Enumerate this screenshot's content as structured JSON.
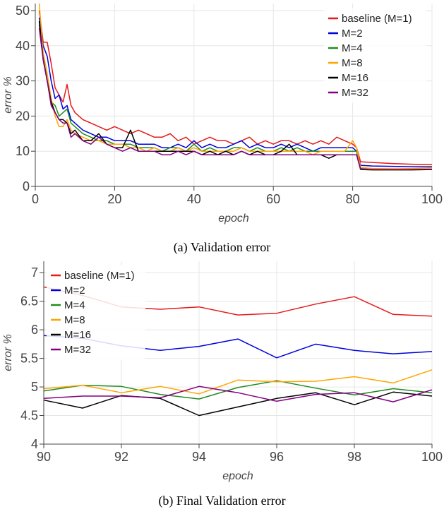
{
  "chart_data": [
    {
      "type": "line",
      "caption": "(a) Validation error",
      "xlabel": "epoch",
      "ylabel": "error %",
      "xlim": [
        0,
        100
      ],
      "ylim": [
        0,
        52
      ],
      "xticks": [
        0,
        20,
        40,
        60,
        80,
        100
      ],
      "yticks": [
        0,
        10,
        20,
        30,
        40,
        50
      ],
      "grid": true,
      "legend": "top-right",
      "series": [
        {
          "name": "baseline (M=1)",
          "color": "#e41a1c",
          "x": [
            1,
            2,
            3,
            4,
            5,
            6,
            7,
            8,
            9,
            10,
            12,
            14,
            16,
            18,
            20,
            22,
            24,
            26,
            28,
            30,
            32,
            34,
            36,
            38,
            40,
            42,
            44,
            46,
            48,
            50,
            52,
            54,
            56,
            58,
            60,
            62,
            64,
            66,
            68,
            70,
            72,
            74,
            76,
            78,
            80,
            81,
            82,
            85,
            90,
            95,
            100
          ],
          "y": [
            50,
            41,
            41,
            35,
            28,
            26,
            24,
            29,
            23,
            21,
            19,
            18,
            17,
            16,
            17,
            16,
            15,
            16,
            15,
            14,
            14,
            15,
            13,
            14,
            12,
            13,
            14,
            13,
            13,
            12,
            13,
            14,
            12,
            13,
            12,
            13,
            13,
            12,
            13,
            12,
            13,
            12,
            14,
            13,
            12,
            11,
            7,
            6.8,
            6.5,
            6.3,
            6.2
          ]
        },
        {
          "name": "M=2",
          "color": "#0000dd",
          "x": [
            1,
            2,
            3,
            4,
            5,
            6,
            7,
            8,
            9,
            10,
            12,
            14,
            16,
            18,
            20,
            22,
            24,
            26,
            28,
            30,
            32,
            34,
            36,
            38,
            40,
            42,
            44,
            46,
            48,
            50,
            52,
            54,
            56,
            58,
            60,
            62,
            64,
            66,
            68,
            70,
            72,
            74,
            76,
            78,
            80,
            81,
            82,
            85,
            90,
            95,
            100
          ],
          "y": [
            48,
            40,
            37,
            30,
            25,
            26,
            22,
            23,
            19,
            18,
            16,
            15,
            14,
            14,
            13,
            13,
            13,
            12,
            12,
            12,
            11,
            11,
            12,
            11,
            13,
            11,
            12,
            11,
            11,
            12,
            13,
            11,
            12,
            11,
            11,
            12,
            11,
            12,
            11,
            10,
            11,
            11,
            11,
            11,
            11,
            10,
            6,
            5.8,
            5.7,
            5.6,
            5.6
          ]
        },
        {
          "name": "M=4",
          "color": "#228b22",
          "x": [
            1,
            2,
            3,
            4,
            5,
            6,
            7,
            8,
            9,
            10,
            12,
            14,
            16,
            18,
            20,
            22,
            24,
            26,
            28,
            30,
            32,
            34,
            36,
            38,
            40,
            42,
            44,
            46,
            48,
            50,
            52,
            54,
            56,
            58,
            60,
            62,
            64,
            66,
            68,
            70,
            72,
            74,
            76,
            78,
            80,
            81,
            82,
            85,
            90,
            95,
            100
          ],
          "y": [
            46,
            37,
            30,
            24,
            23,
            20,
            21,
            22,
            18,
            17,
            15,
            14,
            13,
            13,
            12,
            12,
            12,
            11,
            11,
            11,
            10,
            11,
            11,
            10,
            12,
            10,
            11,
            10,
            10,
            11,
            11,
            10,
            11,
            10,
            10,
            11,
            10,
            11,
            10,
            10,
            10,
            10,
            10,
            10,
            10,
            10,
            5.2,
            5.0,
            5.0,
            4.9,
            4.9
          ]
        },
        {
          "name": "M=8",
          "color": "#ffa500",
          "x": [
            1,
            2,
            3,
            4,
            5,
            6,
            7,
            8,
            9,
            10,
            12,
            14,
            16,
            18,
            20,
            22,
            24,
            26,
            28,
            30,
            32,
            34,
            36,
            38,
            40,
            42,
            44,
            46,
            48,
            50,
            52,
            54,
            56,
            58,
            60,
            62,
            64,
            66,
            68,
            70,
            72,
            74,
            76,
            78,
            80,
            81,
            82,
            85,
            90,
            95,
            100
          ],
          "y": [
            52,
            38,
            32,
            25,
            20,
            17,
            17,
            19,
            16,
            15,
            14,
            13,
            13,
            12,
            12,
            12,
            11,
            11,
            10,
            11,
            10,
            10,
            11,
            10,
            11,
            10,
            10,
            10,
            10,
            10,
            11,
            10,
            10,
            10,
            10,
            10,
            10,
            10,
            10,
            9,
            10,
            10,
            10,
            10,
            13,
            11,
            5.4,
            5.1,
            5.0,
            5.1,
            5.3
          ]
        },
        {
          "name": "M=16",
          "color": "#000000",
          "x": [
            1,
            2,
            3,
            4,
            5,
            6,
            7,
            8,
            9,
            10,
            12,
            14,
            16,
            18,
            20,
            22,
            24,
            26,
            28,
            30,
            32,
            34,
            36,
            38,
            40,
            42,
            44,
            46,
            48,
            50,
            52,
            54,
            56,
            58,
            60,
            62,
            64,
            66,
            68,
            70,
            72,
            74,
            76,
            78,
            80,
            81,
            82,
            85,
            90,
            95,
            100
          ],
          "y": [
            47,
            36,
            30,
            24,
            21,
            19,
            19,
            18,
            15,
            16,
            13,
            13,
            15,
            12,
            11,
            11,
            16,
            10,
            10,
            10,
            10,
            10,
            10,
            10,
            10,
            9,
            10,
            9,
            10,
            9,
            10,
            9,
            10,
            9,
            9,
            10,
            12,
            9,
            9,
            9,
            9,
            8,
            9,
            9,
            9,
            9,
            4.8,
            4.7,
            4.7,
            4.7,
            4.8
          ]
        },
        {
          "name": "M=32",
          "color": "#800080",
          "x": [
            1,
            2,
            3,
            4,
            5,
            6,
            7,
            8,
            9,
            10,
            12,
            14,
            16,
            18,
            20,
            22,
            24,
            26,
            28,
            30,
            32,
            34,
            36,
            38,
            40,
            42,
            44,
            46,
            48,
            50,
            52,
            54,
            56,
            58,
            60,
            62,
            64,
            66,
            68,
            70,
            72,
            74,
            76,
            78,
            80,
            81,
            82,
            85,
            90,
            95,
            100
          ],
          "y": [
            45,
            36,
            30,
            23,
            21,
            19,
            18,
            18,
            14,
            15,
            13,
            12,
            14,
            12,
            11,
            10,
            11,
            10,
            10,
            10,
            9,
            9,
            10,
            9,
            10,
            9,
            9,
            9,
            9,
            9,
            10,
            9,
            9,
            9,
            9,
            9,
            9,
            9,
            9,
            9,
            9,
            9,
            9,
            9,
            9,
            9,
            4.9,
            4.8,
            4.8,
            4.8,
            4.9
          ]
        }
      ]
    },
    {
      "type": "line",
      "caption": "(b) Final Validation error",
      "xlabel": "epoch",
      "ylabel": "error %",
      "xlim": [
        90,
        100
      ],
      "ylim": [
        4,
        7.2
      ],
      "xticks": [
        90,
        92,
        94,
        96,
        98,
        100
      ],
      "yticks": [
        4,
        4.5,
        5,
        5.5,
        6,
        6.5,
        7
      ],
      "yticklabels": [
        "4",
        "4.5",
        "5",
        "5.5",
        "6",
        "6.5",
        "7"
      ],
      "grid": true,
      "legend": "top-left",
      "series": [
        {
          "name": "baseline (M=1)",
          "color": "#e41a1c",
          "x": [
            90,
            91,
            92,
            93,
            94,
            95,
            96,
            97,
            98,
            99,
            100
          ],
          "y": [
            6.75,
            6.6,
            6.4,
            6.36,
            6.4,
            6.26,
            6.29,
            6.45,
            6.58,
            6.27,
            6.24
          ]
        },
        {
          "name": "M=2",
          "color": "#0000dd",
          "x": [
            90,
            91,
            92,
            93,
            94,
            95,
            96,
            97,
            98,
            99,
            100
          ],
          "y": [
            5.9,
            5.85,
            5.72,
            5.64,
            5.71,
            5.84,
            5.51,
            5.75,
            5.64,
            5.58,
            5.62
          ]
        },
        {
          "name": "M=4",
          "color": "#228b22",
          "x": [
            90,
            91,
            92,
            93,
            94,
            95,
            96,
            97,
            98,
            99,
            100
          ],
          "y": [
            4.93,
            5.03,
            5.01,
            4.87,
            4.79,
            4.99,
            5.11,
            4.98,
            4.86,
            4.97,
            4.9
          ]
        },
        {
          "name": "M=8",
          "color": "#ffa500",
          "x": [
            90,
            91,
            92,
            93,
            94,
            95,
            96,
            97,
            98,
            99,
            100
          ],
          "y": [
            4.97,
            5.03,
            4.9,
            5.01,
            4.88,
            5.12,
            5.09,
            5.1,
            5.18,
            5.07,
            5.3
          ]
        },
        {
          "name": "M=16",
          "color": "#000000",
          "x": [
            90,
            91,
            92,
            93,
            94,
            95,
            96,
            97,
            98,
            99,
            100
          ],
          "y": [
            4.77,
            4.63,
            4.85,
            4.8,
            4.5,
            4.65,
            4.8,
            4.9,
            4.69,
            4.91,
            4.84
          ]
        },
        {
          "name": "M=32",
          "color": "#800080",
          "x": [
            90,
            91,
            92,
            93,
            94,
            95,
            96,
            97,
            98,
            99,
            100
          ],
          "y": [
            4.8,
            4.84,
            4.84,
            4.81,
            5.01,
            4.9,
            4.75,
            4.87,
            4.9,
            4.74,
            4.95
          ]
        }
      ]
    }
  ]
}
